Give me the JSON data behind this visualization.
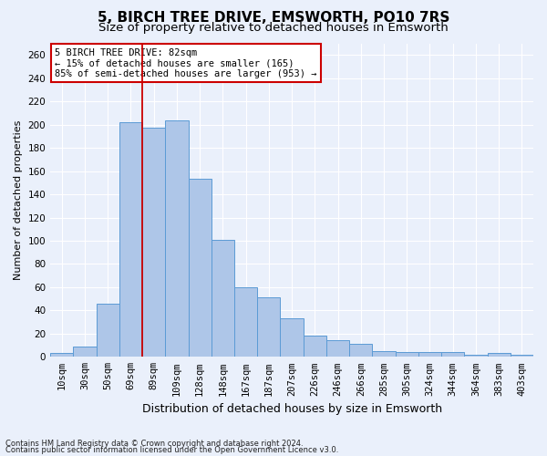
{
  "title1": "5, BIRCH TREE DRIVE, EMSWORTH, PO10 7RS",
  "title2": "Size of property relative to detached houses in Emsworth",
  "xlabel": "Distribution of detached houses by size in Emsworth",
  "ylabel": "Number of detached properties",
  "categories": [
    "10sqm",
    "30sqm",
    "50sqm",
    "69sqm",
    "89sqm",
    "109sqm",
    "128sqm",
    "148sqm",
    "167sqm",
    "187sqm",
    "207sqm",
    "226sqm",
    "246sqm",
    "266sqm",
    "285sqm",
    "305sqm",
    "324sqm",
    "344sqm",
    "364sqm",
    "383sqm",
    "403sqm"
  ],
  "values": [
    3,
    9,
    46,
    202,
    197,
    204,
    153,
    101,
    60,
    51,
    33,
    18,
    14,
    11,
    5,
    4,
    4,
    4,
    2,
    3,
    2
  ],
  "bar_color": "#aec6e8",
  "bar_edge_color": "#5b9bd5",
  "vline_x_index": 3,
  "vline_color": "#cc0000",
  "annotation_text": "5 BIRCH TREE DRIVE: 82sqm\n← 15% of detached houses are smaller (165)\n85% of semi-detached houses are larger (953) →",
  "annotation_box_color": "#ffffff",
  "annotation_box_edge": "#cc0000",
  "footer1": "Contains HM Land Registry data © Crown copyright and database right 2024.",
  "footer2": "Contains public sector information licensed under the Open Government Licence v3.0.",
  "bg_color": "#eaf0fb",
  "plot_bg_color": "#eaf0fb",
  "ylim": [
    0,
    270
  ],
  "yticks": [
    0,
    20,
    40,
    60,
    80,
    100,
    120,
    140,
    160,
    180,
    200,
    220,
    240,
    260
  ],
  "grid_color": "#ffffff",
  "title1_fontsize": 11,
  "title2_fontsize": 9.5,
  "xlabel_fontsize": 9,
  "ylabel_fontsize": 8,
  "tick_fontsize": 7.5,
  "annot_fontsize": 7.5,
  "footer_fontsize": 6
}
